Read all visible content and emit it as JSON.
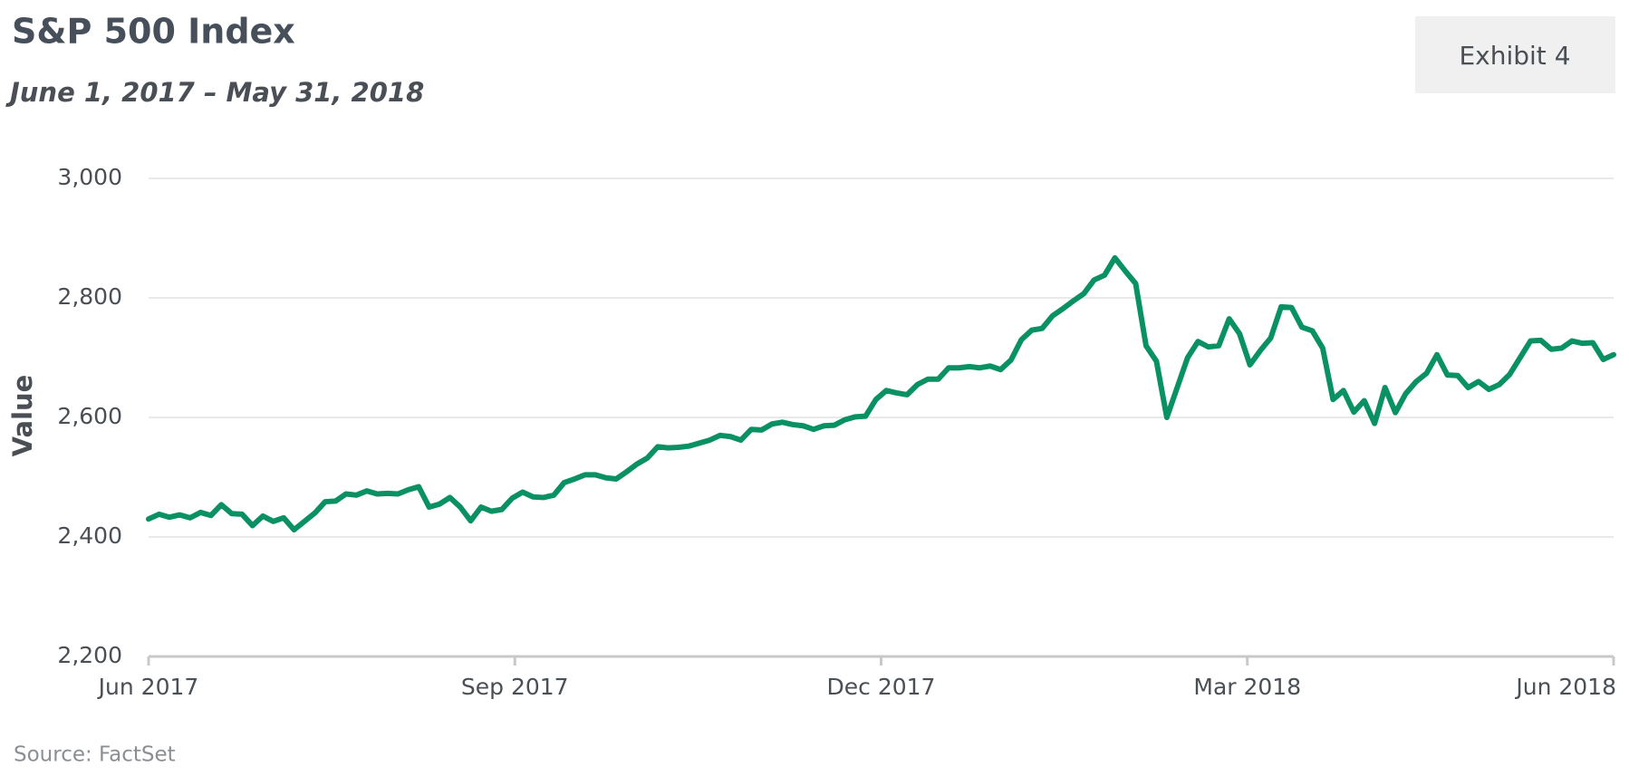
{
  "chart_data": {
    "type": "line",
    "title": "S&P 500 Index",
    "subtitle": "June 1, 2017 – May 31, 2018",
    "exhibit": "Exhibit 4",
    "y_label": "Value",
    "source": "Source: FactSet",
    "color": "#0a9163",
    "grid": true,
    "ylim": [
      2200,
      3000
    ],
    "yticks": [
      {
        "value": 2200,
        "label": "2,200"
      },
      {
        "value": 2400,
        "label": "2,400"
      },
      {
        "value": 2600,
        "label": "2,600"
      },
      {
        "value": 2800,
        "label": "2,800"
      },
      {
        "value": 3000,
        "label": "3,000"
      }
    ],
    "xlim": [
      "2017-06",
      "2018-06"
    ],
    "xticks": [
      {
        "value": "2017-06",
        "label": "Jun 2017"
      },
      {
        "value": "2017-09",
        "label": "Sep 2017"
      },
      {
        "value": "2017-12",
        "label": "Dec 2017"
      },
      {
        "value": "2018-03",
        "label": "Mar 2018"
      },
      {
        "value": "2018-06",
        "label": "Jun 2018"
      }
    ],
    "values": [
      2430,
      2438,
      2433,
      2437,
      2432,
      2441,
      2436,
      2454,
      2439,
      2438,
      2419,
      2435,
      2426,
      2432,
      2412,
      2426,
      2440,
      2459,
      2460,
      2472,
      2470,
      2477,
      2472,
      2473,
      2472,
      2479,
      2484,
      2450,
      2455,
      2466,
      2450,
      2427,
      2450,
      2443,
      2446,
      2465,
      2475,
      2467,
      2466,
      2470,
      2491,
      2497,
      2504,
      2504,
      2499,
      2497,
      2509,
      2522,
      2532,
      2551,
      2549,
      2550,
      2552,
      2557,
      2562,
      2570,
      2568,
      2562,
      2580,
      2579,
      2589,
      2592,
      2588,
      2586,
      2580,
      2586,
      2587,
      2596,
      2601,
      2602,
      2630,
      2645,
      2641,
      2638,
      2655,
      2664,
      2664,
      2683,
      2683,
      2685,
      2683,
      2686,
      2680,
      2696,
      2730,
      2746,
      2749,
      2770,
      2782,
      2795,
      2807,
      2830,
      2838,
      2867,
      2845,
      2824,
      2720,
      2694,
      2600,
      2650,
      2700,
      2727,
      2718,
      2720,
      2765,
      2740,
      2688,
      2712,
      2733,
      2785,
      2784,
      2751,
      2745,
      2716,
      2630,
      2645,
      2609,
      2628,
      2590,
      2650,
      2608,
      2640,
      2660,
      2674,
      2705,
      2671,
      2670,
      2650,
      2660,
      2647,
      2655,
      2672,
      2700,
      2728,
      2729,
      2714,
      2716,
      2728,
      2724,
      2725,
      2697,
      2705
    ]
  }
}
